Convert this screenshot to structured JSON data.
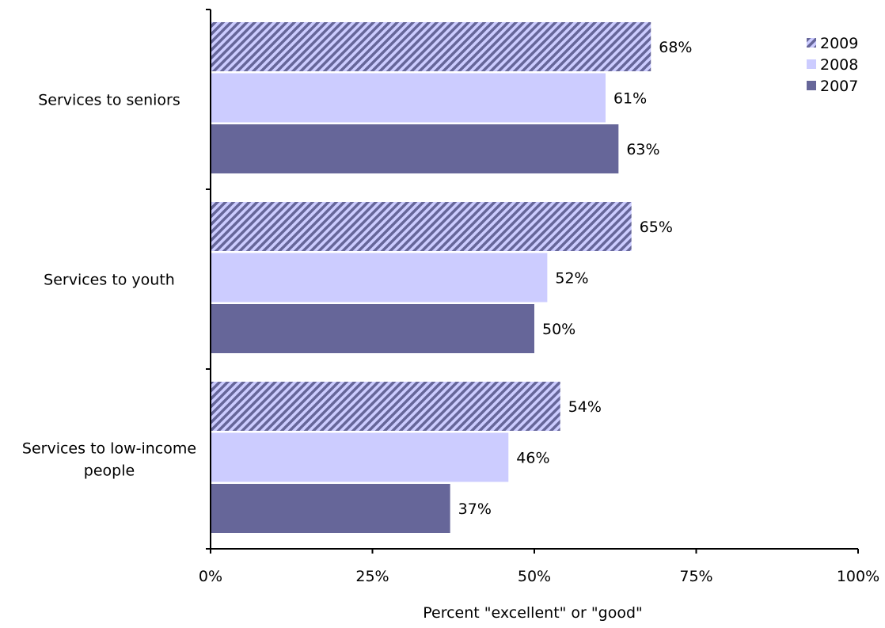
{
  "chart_data": {
    "type": "bar",
    "orientation": "horizontal",
    "categories": [
      [
        "Services to seniors"
      ],
      [
        "Services to youth"
      ],
      [
        "Services to low-income",
        "people"
      ]
    ],
    "series": [
      {
        "name": "2009",
        "values": [
          68,
          65,
          54
        ],
        "color": "#666699",
        "pattern": "diagonal-hatch"
      },
      {
        "name": "2008",
        "values": [
          61,
          52,
          46
        ],
        "color": "#ccccff",
        "pattern": "solid"
      },
      {
        "name": "2007",
        "values": [
          63,
          50,
          37
        ],
        "color": "#666699",
        "pattern": "solid"
      }
    ],
    "data_label_format": "{v}%",
    "xlim": [
      0,
      100
    ],
    "xticks": [
      0,
      25,
      50,
      75,
      100
    ],
    "xtick_labels": [
      "0%",
      "25%",
      "50%",
      "75%",
      "100%"
    ],
    "xlabel": "Percent \"excellent\" or \"good\"",
    "grid": false,
    "legend_position": "top-right"
  }
}
